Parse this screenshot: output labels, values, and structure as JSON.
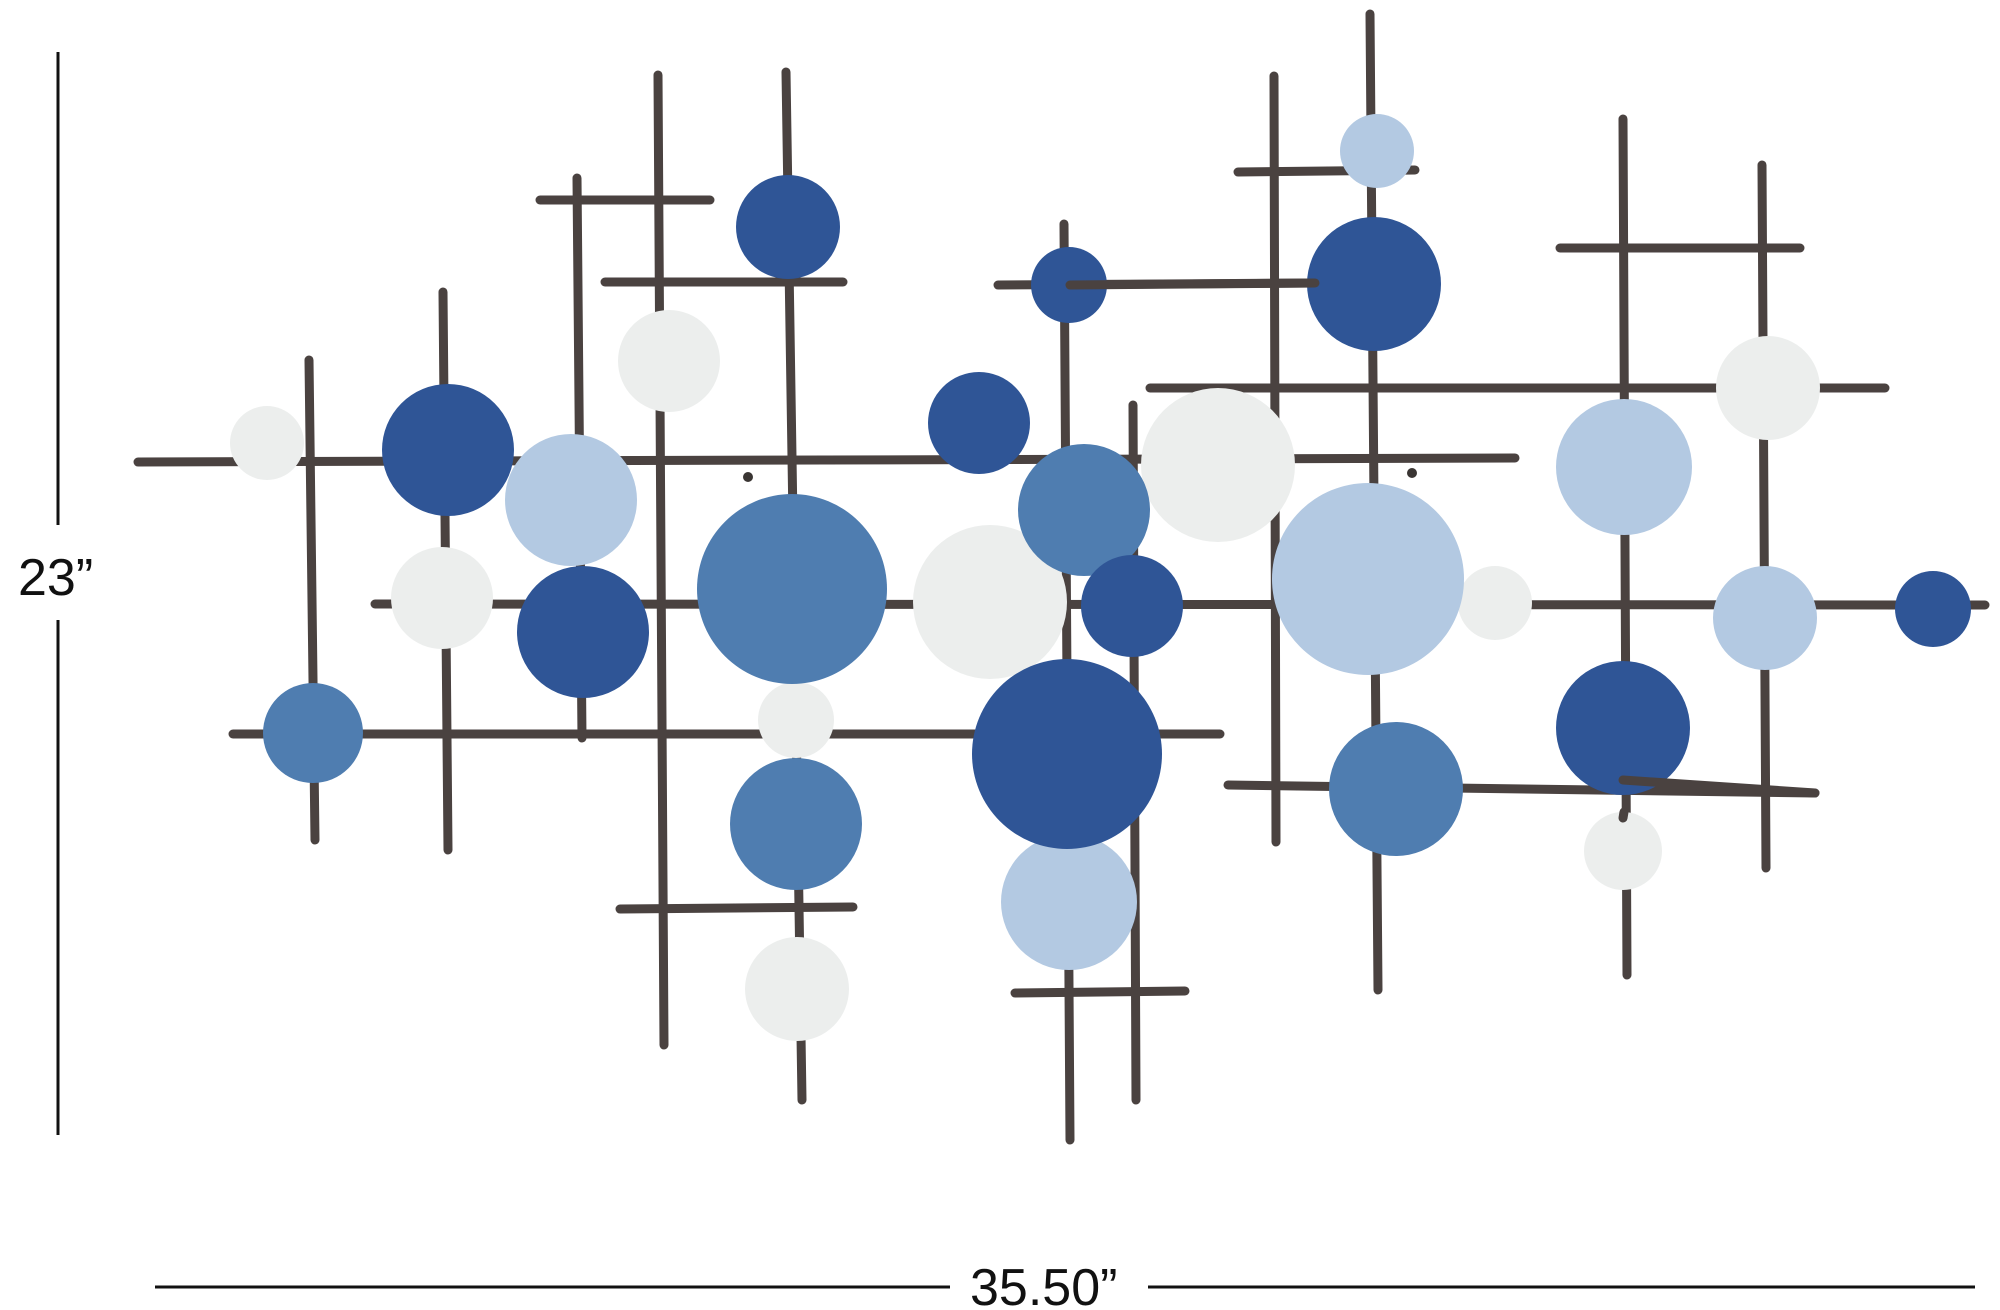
{
  "dimensions": {
    "height_label": "23”",
    "width_label": "35.50”"
  },
  "colors": {
    "rod": "#4a4240",
    "navy": "#2f5697",
    "mid_blue": "#4f7fb0",
    "light_blue": "#b6cce4",
    "white": "#eef0f0",
    "dimension_line": "#111111"
  }
}
